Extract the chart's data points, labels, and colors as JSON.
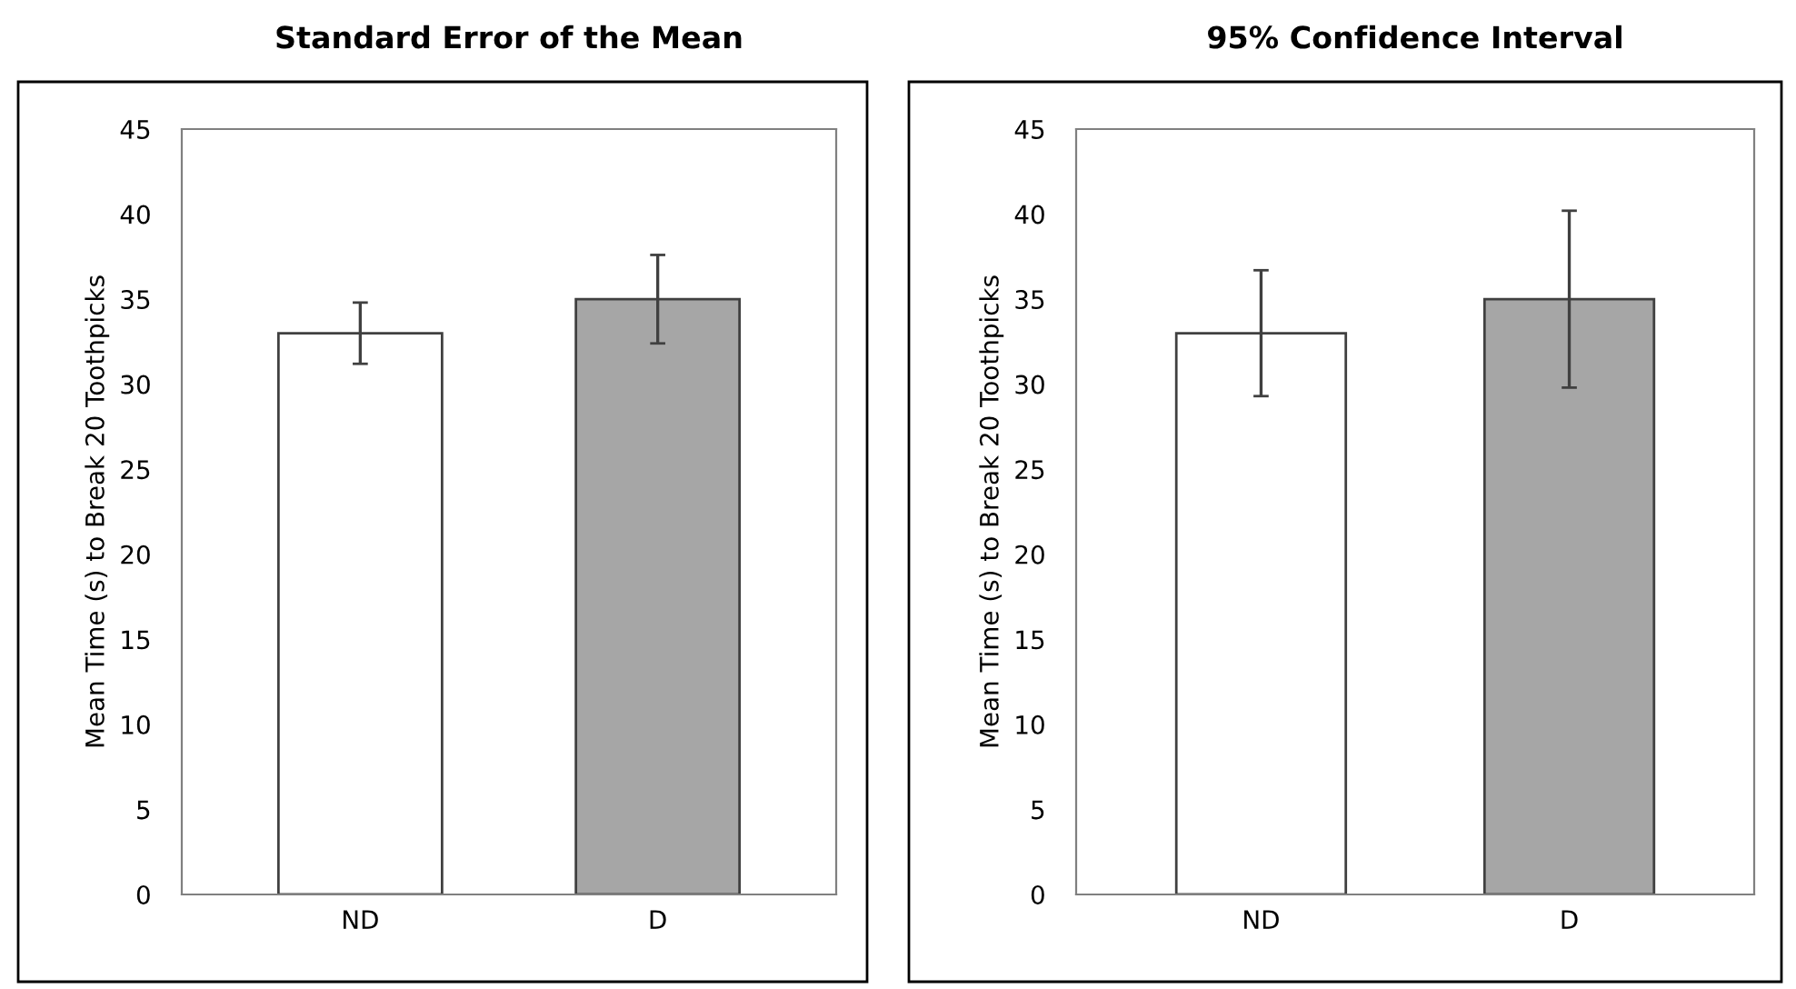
{
  "chart_data": [
    {
      "type": "bar",
      "title": "Standard Error of the Mean",
      "ylabel": "Mean Time (s) to Break 20 Toothpicks",
      "categories": [
        "ND",
        "D"
      ],
      "values": [
        33,
        35
      ],
      "colors": [
        "#ffffff",
        "#a6a6a6"
      ],
      "errors": [
        1.8,
        2.6
      ],
      "ylim": [
        0,
        45
      ],
      "yticks": [
        0,
        5,
        10,
        15,
        20,
        25,
        30,
        35,
        40,
        45
      ],
      "grid": false,
      "legend": false
    },
    {
      "type": "bar",
      "title": "95% Confidence Interval",
      "ylabel": "Mean Time (s) to Break 20 Toothpicks",
      "categories": [
        "ND",
        "D"
      ],
      "values": [
        33,
        35
      ],
      "colors": [
        "#ffffff",
        "#a6a6a6"
      ],
      "errors": [
        3.7,
        5.2
      ],
      "ylim": [
        0,
        45
      ],
      "yticks": [
        0,
        5,
        10,
        15,
        20,
        25,
        30,
        35,
        40,
        45
      ],
      "grid": false,
      "legend": false
    }
  ]
}
